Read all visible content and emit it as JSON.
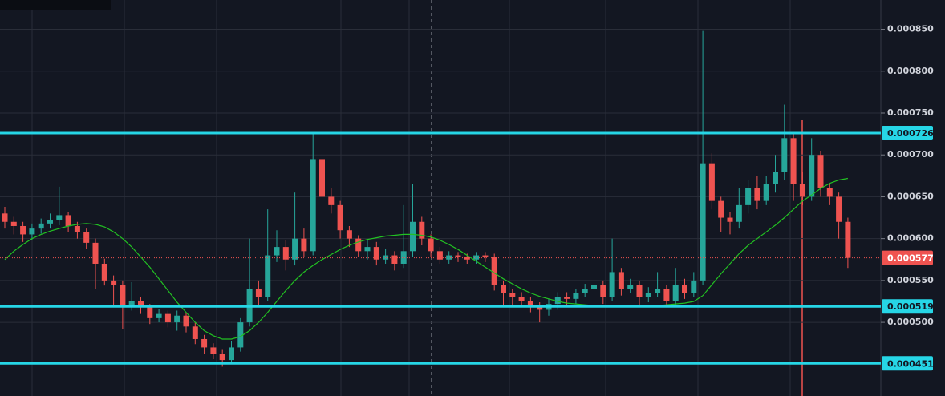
{
  "chart_data": {
    "type": "candlestick",
    "ylim": [
      0.000412,
      0.000885
    ],
    "yticks": [
      {
        "value": 0.0005,
        "label": "0.000500"
      },
      {
        "value": 0.00055,
        "label": "0.000550"
      },
      {
        "value": 0.0006,
        "label": "0.000600"
      },
      {
        "value": 0.00065,
        "label": "0.000650"
      },
      {
        "value": 0.0007,
        "label": "0.000700"
      },
      {
        "value": 0.00075,
        "label": "0.000750"
      },
      {
        "value": 0.0008,
        "label": "0.000800"
      },
      {
        "value": 0.00085,
        "label": "0.000850"
      }
    ],
    "grid": true,
    "up_color": "#26a69a",
    "down_color": "#ef5350",
    "open": [
      0.00063,
      0.00062,
      0.000615,
      0.000605,
      0.000612,
      0.000618,
      0.000622,
      0.000628,
      0.000615,
      0.000608,
      0.000595,
      0.00057,
      0.00055,
      0.000545,
      0.00052,
      0.000525,
      0.000518,
      0.000505,
      0.00051,
      0.0005,
      0.000508,
      0.000495,
      0.00048,
      0.00047,
      0.000462,
      0.000455,
      0.00047,
      0.0005,
      0.00054,
      0.00053,
      0.00058,
      0.00059,
      0.000575,
      0.0006,
      0.000585,
      0.000695,
      0.00065,
      0.00064,
      0.00061,
      0.0006,
      0.000585,
      0.00059,
      0.000575,
      0.00058,
      0.00057,
      0.000585,
      0.00062,
      0.0006,
      0.000585,
      0.000575,
      0.00058,
      0.000578,
      0.000575,
      0.00058,
      0.000578,
      0.000545,
      0.000535,
      0.00053,
      0.000525,
      0.00052,
      0.000515,
      0.000522,
      0.00053,
      0.000528,
      0.000535,
      0.00054,
      0.000545,
      0.00053,
      0.00056,
      0.00054,
      0.000545,
      0.00053,
      0.000535,
      0.00054,
      0.000525,
      0.000545,
      0.000535,
      0.00055,
      0.00069,
      0.000645,
      0.000625,
      0.00062,
      0.00064,
      0.00066,
      0.000645,
      0.000665,
      0.00068,
      0.00072,
      0.000665,
      0.00065,
      0.0007,
      0.00066,
      0.00065,
      0.00062
    ],
    "high": [
      0.000638,
      0.000626,
      0.00062,
      0.000618,
      0.000624,
      0.00063,
      0.000662,
      0.000632,
      0.00062,
      0.000612,
      0.0006,
      0.000576,
      0.000556,
      0.00055,
      0.000548,
      0.00053,
      0.000522,
      0.000516,
      0.000514,
      0.000514,
      0.000512,
      0.0005,
      0.000485,
      0.000475,
      0.000468,
      0.000478,
      0.000505,
      0.0006,
      0.00055,
      0.000635,
      0.00061,
      0.000598,
      0.000655,
      0.000612,
      0.000726,
      0.0007,
      0.00066,
      0.000645,
      0.000615,
      0.000604,
      0.000598,
      0.000596,
      0.000588,
      0.000585,
      0.00064,
      0.000665,
      0.000626,
      0.000605,
      0.00059,
      0.000585,
      0.000584,
      0.000582,
      0.000584,
      0.000584,
      0.000582,
      0.00055,
      0.00054,
      0.000536,
      0.00053,
      0.000524,
      0.000528,
      0.000536,
      0.000536,
      0.00054,
      0.000546,
      0.000552,
      0.00055,
      0.0006,
      0.000565,
      0.000552,
      0.00055,
      0.000542,
      0.00056,
      0.000545,
      0.000565,
      0.000552,
      0.00056,
      0.000848,
      0.000702,
      0.00065,
      0.000632,
      0.00066,
      0.00067,
      0.000675,
      0.000675,
      0.0007,
      0.00076,
      0.000725,
      0.00068,
      0.00072,
      0.000705,
      0.000665,
      0.000655,
      0.000625
    ],
    "low": [
      0.000612,
      0.000605,
      0.000596,
      0.000598,
      0.000606,
      0.000612,
      0.000616,
      0.000608,
      0.0006,
      0.000588,
      0.00054,
      0.000544,
      0.00052,
      0.000492,
      0.000514,
      0.00051,
      0.000498,
      0.0005,
      0.000494,
      0.00049,
      0.000488,
      0.000474,
      0.000462,
      0.000456,
      0.000447,
      0.00045,
      0.000465,
      0.000495,
      0.00052,
      0.000525,
      0.000572,
      0.000562,
      0.000568,
      0.000578,
      0.00058,
      0.00064,
      0.00063,
      0.0006,
      0.00059,
      0.000578,
      0.000575,
      0.000568,
      0.00057,
      0.000562,
      0.000565,
      0.000578,
      0.000592,
      0.000578,
      0.00057,
      0.00057,
      0.000572,
      0.00057,
      0.00057,
      0.000572,
      0.000538,
      0.00052,
      0.00052,
      0.000518,
      0.000512,
      0.0005,
      0.000508,
      0.000515,
      0.00052,
      0.000522,
      0.00053,
      0.000535,
      0.000522,
      0.000525,
      0.000532,
      0.000535,
      0.00052,
      0.000524,
      0.00053,
      0.000518,
      0.00052,
      0.000528,
      0.00053,
      0.000545,
      0.000635,
      0.000608,
      0.000605,
      0.000612,
      0.00063,
      0.000635,
      0.00064,
      0.000655,
      0.00067,
      0.000645,
      0.00064,
      0.000645,
      0.00065,
      0.00064,
      0.0006,
      0.000565
    ],
    "close": [
      0.00062,
      0.000615,
      0.000605,
      0.000612,
      0.000618,
      0.000622,
      0.000628,
      0.000615,
      0.000608,
      0.000595,
      0.00057,
      0.00055,
      0.000545,
      0.00052,
      0.000525,
      0.000518,
      0.000505,
      0.00051,
      0.0005,
      0.000508,
      0.000495,
      0.00048,
      0.00047,
      0.000462,
      0.000455,
      0.00047,
      0.0005,
      0.00054,
      0.00053,
      0.00058,
      0.00059,
      0.000575,
      0.0006,
      0.000585,
      0.000695,
      0.00065,
      0.00064,
      0.00061,
      0.0006,
      0.000585,
      0.00059,
      0.000575,
      0.00058,
      0.00057,
      0.000585,
      0.00062,
      0.0006,
      0.000585,
      0.000575,
      0.00058,
      0.000578,
      0.000575,
      0.00058,
      0.000578,
      0.000545,
      0.000535,
      0.00053,
      0.000525,
      0.00052,
      0.000515,
      0.000522,
      0.00053,
      0.000528,
      0.000535,
      0.00054,
      0.000545,
      0.00053,
      0.00056,
      0.00054,
      0.000545,
      0.00053,
      0.000535,
      0.00054,
      0.000525,
      0.000545,
      0.000535,
      0.00055,
      0.00069,
      0.000645,
      0.000625,
      0.00062,
      0.00064,
      0.00066,
      0.000645,
      0.000665,
      0.00068,
      0.00072,
      0.000665,
      0.00065,
      0.0007,
      0.00066,
      0.00065,
      0.00062,
      0.000577
    ],
    "moving_average": {
      "color": "#22c122",
      "values": [
        0.000575,
        0.000585,
        0.000593,
        0.0006,
        0.000605,
        0.000609,
        0.000612,
        0.000615,
        0.000617,
        0.000618,
        0.000617,
        0.000614,
        0.000608,
        0.0006,
        0.00059,
        0.000578,
        0.000566,
        0.000552,
        0.000538,
        0.000524,
        0.000512,
        0.0005,
        0.00049,
        0.000484,
        0.00048,
        0.00048,
        0.000483,
        0.00049,
        0.0005,
        0.000512,
        0.000525,
        0.000538,
        0.00055,
        0.00056,
        0.000568,
        0.000575,
        0.000581,
        0.000587,
        0.000592,
        0.000596,
        0.000599,
        0.000601,
        0.000603,
        0.000604,
        0.000605,
        0.000605,
        0.000604,
        0.000602,
        0.000598,
        0.000593,
        0.000587,
        0.00058,
        0.000573,
        0.000566,
        0.000559,
        0.000552,
        0.000546,
        0.00054,
        0.000535,
        0.000531,
        0.000528,
        0.000525,
        0.000523,
        0.000522,
        0.000521,
        0.00052,
        0.00052,
        0.00052,
        0.00052,
        0.00052,
        0.00052,
        0.00052,
        0.00052,
        0.000521,
        0.000522,
        0.000523,
        0.000525,
        0.000532,
        0.000545,
        0.000558,
        0.00057,
        0.000582,
        0.000592,
        0.0006,
        0.000608,
        0.000616,
        0.000625,
        0.000635,
        0.000645,
        0.000652,
        0.00066,
        0.000666,
        0.00067,
        0.000672
      ]
    },
    "level_color": "#26d6e6",
    "levels": [
      0.000726,
      0.000519,
      0.000451
    ],
    "last_price": 0.000577,
    "last_price_color": "#ef5350"
  }
}
